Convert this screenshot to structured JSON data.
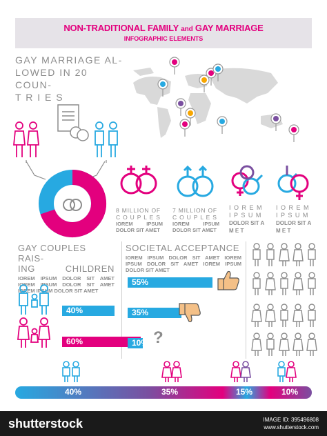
{
  "header": {
    "title_part1": "NON-TRADITIONAL FAMILY",
    "title_and": "and",
    "title_part2": "GAY MARRIAGE",
    "subtitle": "INFOGRAPHIC ELEMENTS"
  },
  "map_section": {
    "line1": "GAY MARRIAGE AL-",
    "line2": "LOWED IN 20 COUN-",
    "line3": "T R I E S"
  },
  "couples": [
    {
      "stat_line1": "8 MILLION OF",
      "stat_line2": "C O U P L E S",
      "lorem": "IOREM IPSUM DOLOR SIT AMET"
    },
    {
      "stat_line1": "7 MILLION OF",
      "stat_line2": "C O U P L E S",
      "lorem": "IOREM IPSUM DOLOR SIT AMET"
    },
    {
      "stat_line1": "I O R E M",
      "stat_line2": "I P S U M",
      "lorem": "DOLOR SIT A M E T"
    },
    {
      "stat_line1": "I O R E M",
      "stat_line2": "I P S U M",
      "lorem": "DOLOR SIT A M E T"
    }
  ],
  "children_section": {
    "title_line1": "GAY COUPLES RAIS-",
    "title_line2": "ING",
    "title_line2b": "CHILDREN",
    "lorem": "IOREM IPSUM DOLOR SIT AMET IOREM IPSUM DOLOR SIT AMET IOREM IPSUM DOLOR SIT AMET",
    "bar1_value": 40,
    "bar1_label": "40%",
    "bar2_value": 60,
    "bar2_label": "60%"
  },
  "acceptance_section": {
    "title": "SOCIETAL ACCEPTANCE",
    "lorem": "IOREM IPSUM DOLOR SIT AMET IOREM IPSUM DOLOR SIT AMET IOREM IPSUM DOLOR SIT AMET",
    "bar1_value": 55,
    "bar1_label": "55%",
    "bar2_value": 35,
    "bar2_label": "35%",
    "bar3_value": 10,
    "bar3_label": "10%",
    "question": "?"
  },
  "bottom_bar": {
    "labels": [
      "40%",
      "35%",
      "15%",
      "10%"
    ]
  },
  "footer": {
    "logo": "shutterstock",
    "image_id": "IMAGE ID: 395496808",
    "site": "www.shutterstock.com"
  },
  "colors": {
    "magenta": "#e3007e",
    "blue": "#27a9e1",
    "gray": "#8c8c8c",
    "purple": "#7a4fa0"
  }
}
